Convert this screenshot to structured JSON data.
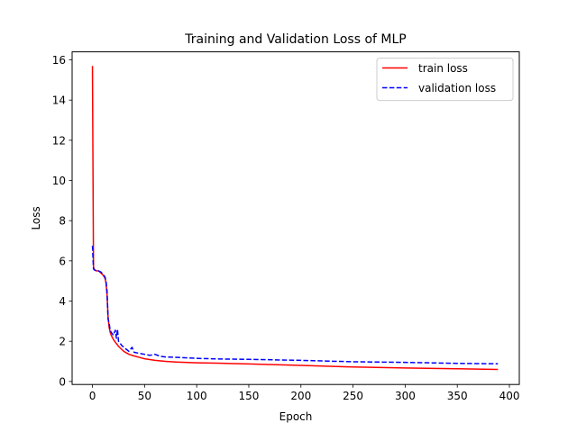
{
  "chart_data": {
    "type": "line",
    "title": "Training and Validation Loss of MLP",
    "xlabel": "Epoch",
    "ylabel": "Loss",
    "xlim": [
      -19.5,
      409.5
    ],
    "ylim": [
      -0.15,
      16.4
    ],
    "xticks": [
      0,
      50,
      100,
      150,
      200,
      250,
      300,
      350,
      400
    ],
    "yticks": [
      0,
      2,
      4,
      6,
      8,
      10,
      12,
      14,
      16
    ],
    "grid": false,
    "legend_position": "top-right",
    "series": [
      {
        "name": "train loss",
        "color": "#ff0000",
        "style": "solid",
        "x": [
          0,
          1,
          2,
          4,
          6,
          8,
          10,
          12,
          13,
          14,
          15,
          16,
          17,
          18,
          20,
          22,
          25,
          28,
          30,
          35,
          40,
          45,
          50,
          60,
          70,
          80,
          100,
          120,
          150,
          200,
          250,
          300,
          350,
          389
        ],
        "y": [
          15.7,
          5.7,
          5.55,
          5.5,
          5.5,
          5.4,
          5.3,
          5.15,
          4.9,
          4.3,
          3.2,
          2.7,
          2.45,
          2.3,
          2.1,
          1.95,
          1.75,
          1.6,
          1.5,
          1.35,
          1.27,
          1.2,
          1.13,
          1.05,
          1.0,
          0.97,
          0.93,
          0.91,
          0.87,
          0.8,
          0.72,
          0.67,
          0.63,
          0.6
        ]
      },
      {
        "name": "validation loss",
        "color": "#0000ff",
        "style": "dashed",
        "x": [
          0,
          1,
          2,
          4,
          6,
          8,
          10,
          12,
          13,
          14,
          15,
          16,
          17,
          18,
          20,
          22,
          23,
          24,
          25,
          28,
          30,
          35,
          38,
          40,
          45,
          50,
          55,
          60,
          65,
          70,
          80,
          100,
          120,
          150,
          200,
          250,
          300,
          350,
          389
        ],
        "y": [
          6.75,
          5.6,
          5.55,
          5.5,
          5.5,
          5.45,
          5.35,
          5.2,
          5.0,
          4.5,
          3.1,
          2.9,
          2.55,
          2.45,
          2.3,
          2.55,
          2.15,
          2.6,
          2.0,
          1.8,
          1.7,
          1.5,
          1.7,
          1.45,
          1.4,
          1.35,
          1.3,
          1.35,
          1.25,
          1.22,
          1.2,
          1.15,
          1.12,
          1.1,
          1.05,
          0.98,
          0.95,
          0.9,
          0.88
        ]
      }
    ]
  }
}
